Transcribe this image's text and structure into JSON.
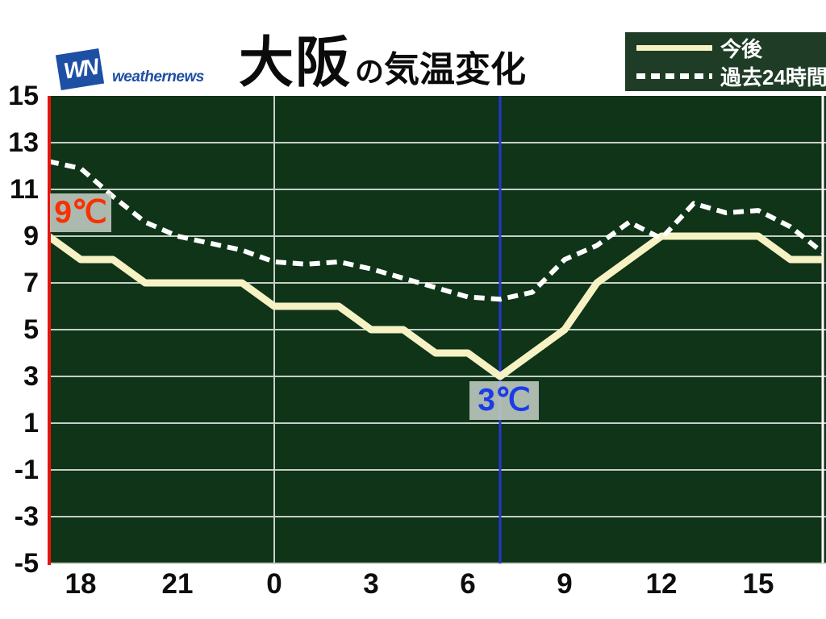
{
  "header": {
    "logo_wn": "WN",
    "logo_word": "weathernews",
    "title_city": "大阪",
    "title_particle": "の",
    "title_rest": "気温変化"
  },
  "legend": {
    "items": [
      {
        "label": "今後",
        "style": "solid"
      },
      {
        "label": "過去24時間",
        "style": "dashed"
      }
    ]
  },
  "labels": {
    "start_temp": "9℃",
    "current_temp": "3℃"
  },
  "colors": {
    "chart_bg": "#0f3418",
    "legend_bg": "#1e3c26",
    "forecast_line": "#f6f2c4",
    "past_line": "#ffffff",
    "gridline": "#c7cfc7",
    "axis_red": "#e8130c",
    "current_time_blue": "#2238d8",
    "start_temp_text": "#f93000",
    "current_temp_text": "#1c3ce8",
    "temp_label_bg": "#c3ccc3",
    "logo_blue": "#1d4fa5",
    "tick_text": "#0d0d0d"
  },
  "chart_data": {
    "type": "line",
    "title": "大阪の気温変化",
    "start_hour": 17,
    "hours_span": 24,
    "current_hour": 7,
    "ylim": [
      -5,
      15
    ],
    "y_tick_labels": [
      "15",
      "13",
      "11",
      "9",
      "7",
      "5",
      "3",
      "1",
      "-1",
      "-3",
      "-5"
    ],
    "y_tick_values": [
      15,
      13,
      11,
      9,
      7,
      5,
      3,
      1,
      -1,
      -3,
      -5
    ],
    "x_tick_labels": [
      "18",
      "21",
      "0",
      "3",
      "6",
      "9",
      "12",
      "15"
    ],
    "x_tick_hours": [
      18,
      21,
      0,
      3,
      6,
      9,
      12,
      15
    ],
    "grid": "on",
    "legend_position": "top-right",
    "series": [
      {
        "name": "今後",
        "style": "solid",
        "color": "#f6f2c4",
        "values": [
          9,
          8,
          8,
          7,
          7,
          7,
          7,
          6,
          6,
          6,
          5,
          5,
          4,
          4,
          3,
          4,
          5,
          7,
          8,
          9,
          9,
          9,
          9,
          8,
          8
        ]
      },
      {
        "name": "過去24時間",
        "style": "dashed",
        "color": "#ffffff",
        "values": [
          12.2,
          11.9,
          10.7,
          9.6,
          9.0,
          8.7,
          8.4,
          7.9,
          7.8,
          7.9,
          7.6,
          7.2,
          6.8,
          6.4,
          6.3,
          6.6,
          8.0,
          8.6,
          9.6,
          8.9,
          10.4,
          10.0,
          10.1,
          9.4,
          8.3
        ]
      }
    ],
    "annotations": [
      {
        "text": "9℃",
        "hour": 17,
        "value": 9
      },
      {
        "text": "3℃",
        "hour": 7,
        "value": 3
      }
    ]
  }
}
